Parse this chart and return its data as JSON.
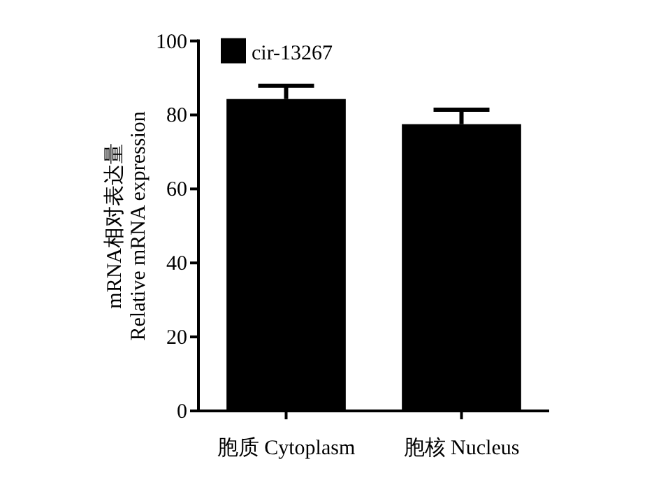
{
  "chart_data": {
    "type": "bar",
    "ylabel": "mRNA相对表达量\nRelative mRNA expression",
    "categories": [
      "胞质 Cytoplasm",
      "胞核 Nucleus"
    ],
    "series": [
      {
        "name": "cir-13267",
        "color": "#000000",
        "values": [
          84.3,
          77.5
        ],
        "errors": [
          [
            84.3,
            87.9
          ],
          [
            77.5,
            81.4
          ]
        ]
      }
    ],
    "ylim": [
      0,
      100
    ],
    "yticks": [
      0,
      20,
      40,
      60,
      80,
      100
    ],
    "legend": "top left",
    "grid": false
  }
}
